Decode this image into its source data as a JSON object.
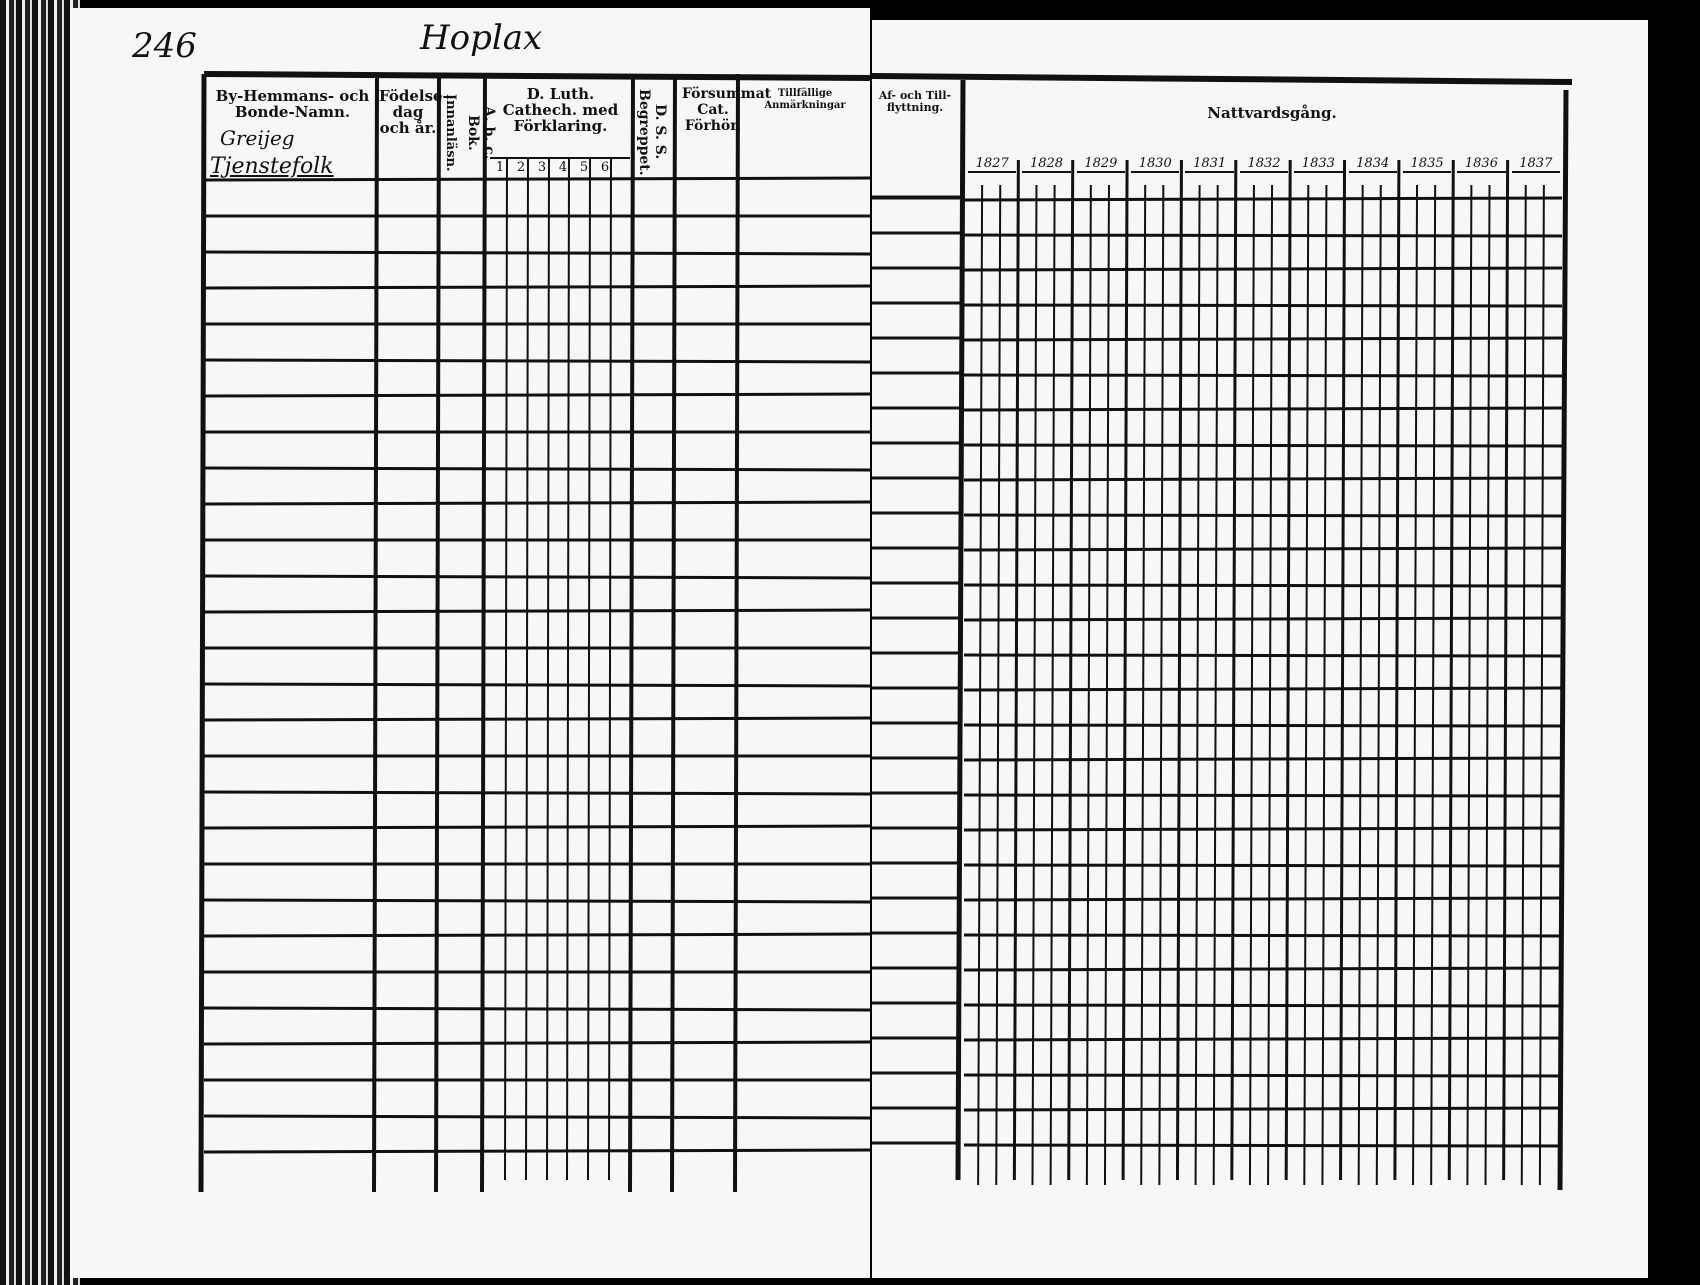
{
  "page_number": "246",
  "place_name": "Hoplax",
  "left_headers": {
    "name_col": "By-Hemmans- och Bonde-Namn.",
    "birth_col": "Födelse-dag och år.",
    "lannlasn_col": "Innanläsn.",
    "abc_col": "A. b. c. Bok.",
    "catech_col": "D. Luth. Cathech. med Förklaring.",
    "catech_subcols": [
      "1",
      "2",
      "3",
      "4",
      "5",
      "6"
    ],
    "dss_col": "D. S. S. Begreppet.",
    "forsummat_col": "Försummat Cat. Förhör.",
    "anmarkn_col": "Tillfällige Anmärkningar"
  },
  "entries": {
    "village": "Greijeg",
    "farm": "Tjenstefolk"
  },
  "right_headers": {
    "flyttning_col": "Af- och Till-flyttning.",
    "nattvard_col": "Nattvardsgång.",
    "years": [
      "1827",
      "1828",
      "1829",
      "1830",
      "1831",
      "1832",
      "1833",
      "1834",
      "1835",
      "1836",
      "1837"
    ]
  }
}
